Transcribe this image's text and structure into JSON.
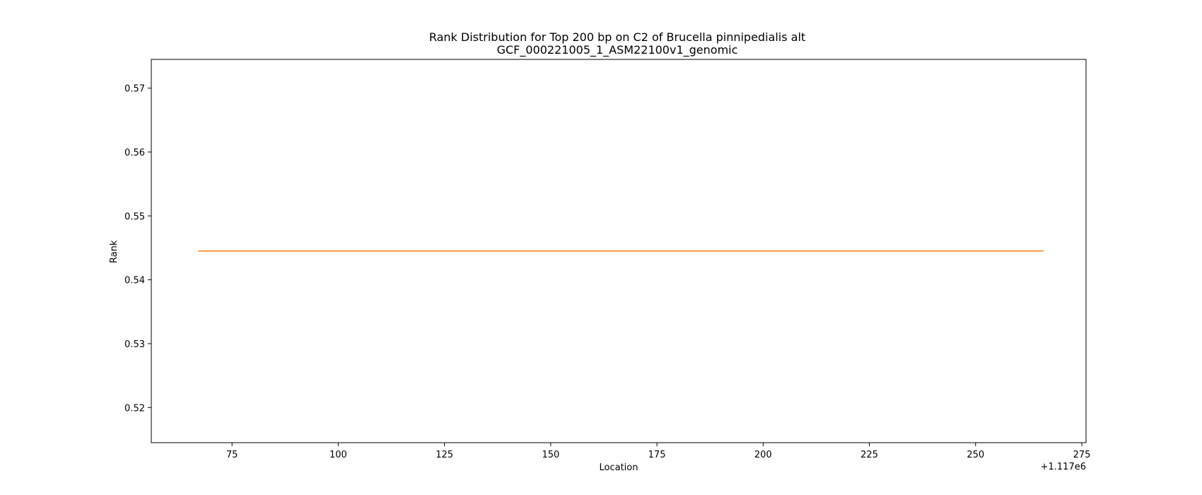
{
  "chart_data": {
    "type": "line",
    "title": "Rank Distribution for Top 200 bp on C2 of Brucella pinnipedialis alt",
    "subtitle": "GCF_000221005_1_ASM22100v1_genomic",
    "xlabel": "Location",
    "ylabel": "Rank",
    "x_offset_label": "+1.117e6",
    "xlim": [
      56,
      276
    ],
    "ylim": [
      0.5145,
      0.5745
    ],
    "xticks": [
      75,
      100,
      125,
      150,
      175,
      200,
      225,
      250,
      275
    ],
    "yticks": [
      0.52,
      0.53,
      0.54,
      0.55,
      0.56,
      0.57
    ],
    "grid": false,
    "series": [
      {
        "color": "#ff7f0e",
        "x": [
          67,
          266
        ],
        "y": [
          0.5445,
          0.5445
        ]
      }
    ]
  }
}
